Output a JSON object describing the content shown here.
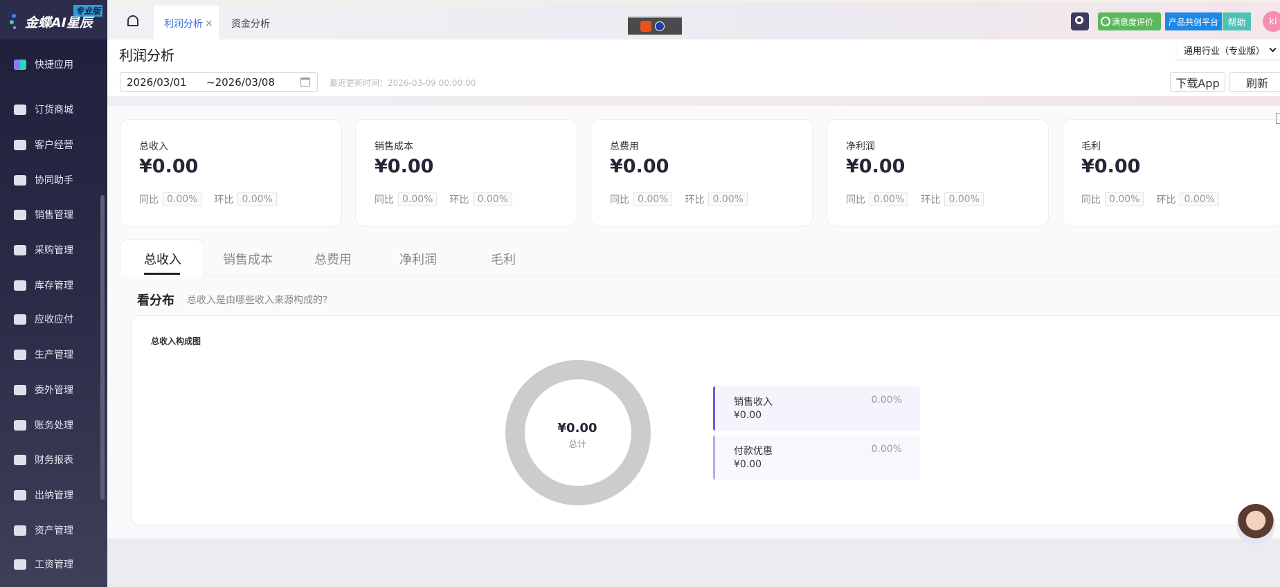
{
  "app": {
    "logo_text": "金蝶AI星辰",
    "edition_badge": "专业版"
  },
  "sidebar": {
    "items": [
      {
        "label": "快捷应用",
        "icon": "apps-icon"
      },
      {
        "label": "订货商城",
        "icon": "shopping-bag-icon"
      },
      {
        "label": "客户经营",
        "icon": "customer-icon"
      },
      {
        "label": "协同助手",
        "icon": "contact-card-icon"
      },
      {
        "label": "销售管理",
        "icon": "trend-icon"
      },
      {
        "label": "采购管理",
        "icon": "cart-icon"
      },
      {
        "label": "库存管理",
        "icon": "box-icon"
      },
      {
        "label": "应收应付",
        "icon": "exchange-icon"
      },
      {
        "label": "生产管理",
        "icon": "factory-icon"
      },
      {
        "label": "委外管理",
        "icon": "outsourcing-icon"
      },
      {
        "label": "账务处理",
        "icon": "ledger-icon"
      },
      {
        "label": "财务报表",
        "icon": "report-icon"
      },
      {
        "label": "出纳管理",
        "icon": "cashier-icon"
      },
      {
        "label": "资产管理",
        "icon": "asset-icon"
      },
      {
        "label": "工资管理",
        "icon": "salary-icon"
      }
    ]
  },
  "topbar": {
    "tabs": [
      {
        "label": "利润分析",
        "active": true,
        "closable": true
      },
      {
        "label": "资金分析",
        "active": false
      }
    ],
    "close_glyph": "×",
    "satisfaction": "满意度评价",
    "cocreate": "产品共创平台",
    "help": "帮助",
    "avatar": "ki"
  },
  "page": {
    "title": "利润分析",
    "date_start": "2026/03/01",
    "date_end": "~2026/03/08",
    "update_time": "最近更新时间：2026-03-09 00:00:00",
    "industry": "通用行业（专业版）",
    "download_app": "下载App",
    "refresh": "刷新"
  },
  "cards": [
    {
      "title": "总收入",
      "value": "¥0.00",
      "yoy_label": "同比",
      "yoy": "0.00%",
      "mom_label": "环比",
      "mom": "0.00%"
    },
    {
      "title": "销售成本",
      "value": "¥0.00",
      "yoy_label": "同比",
      "yoy": "0.00%",
      "mom_label": "环比",
      "mom": "0.00%"
    },
    {
      "title": "总费用",
      "value": "¥0.00",
      "yoy_label": "同比",
      "yoy": "0.00%",
      "mom_label": "环比",
      "mom": "0.00%"
    },
    {
      "title": "净利润",
      "value": "¥0.00",
      "yoy_label": "同比",
      "yoy": "0.00%",
      "mom_label": "环比",
      "mom": "0.00%"
    },
    {
      "title": "毛利",
      "value": "¥0.00",
      "yoy_label": "同比",
      "yoy": "0.00%",
      "mom_label": "环比",
      "mom": "0.00%"
    }
  ],
  "tabs": [
    "总收入",
    "销售成本",
    "总费用",
    "净利润",
    "毛利"
  ],
  "distribution": {
    "heading": "看分布",
    "question": "总收入是由哪些收入来源构成的?",
    "chart_title": "总收入构成图",
    "total_value": "¥0.00",
    "total_label": "总计",
    "legend": [
      {
        "name": "销售收入",
        "amount": "¥0.00",
        "percent": "0.00%",
        "color": "#6a5fd8"
      },
      {
        "name": "付款优惠",
        "amount": "¥0.00",
        "percent": "0.00%",
        "color": "#b3aee8"
      }
    ]
  },
  "chart_data": {
    "type": "pie",
    "categories": [
      "销售收入",
      "付款优惠"
    ],
    "values": [
      0,
      0
    ],
    "title": "总收入构成图",
    "empty_ring_color": "#cccccc"
  }
}
